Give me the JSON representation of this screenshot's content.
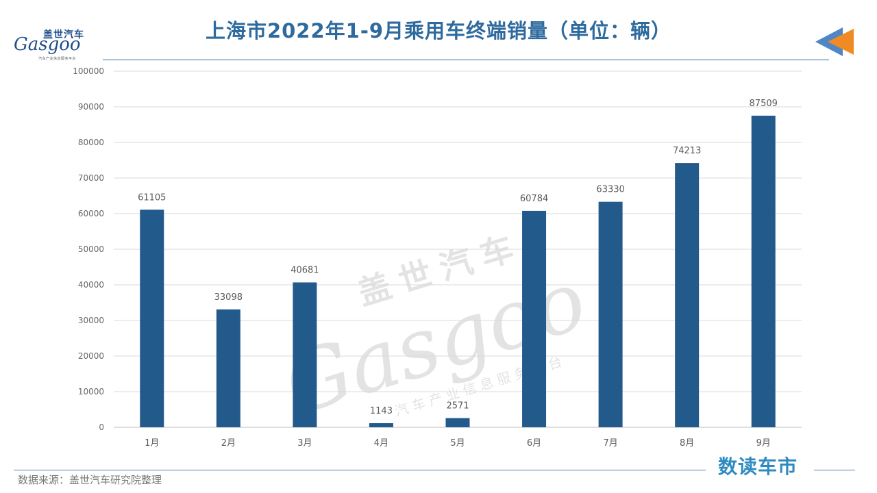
{
  "logo": {
    "cn": "盖世汽车",
    "en": "Gasgoo",
    "sub": "汽车产业信息服务平台"
  },
  "watermark": {
    "cn": "盖世汽车",
    "en": "Gasgoo",
    "sub": "汽车产业信息服务平台"
  },
  "chart_data": {
    "type": "bar",
    "title": "上海市2022年1-9月乘用车终端销量（单位：辆）",
    "categories": [
      "1月",
      "2月",
      "3月",
      "4月",
      "5月",
      "6月",
      "7月",
      "8月",
      "9月"
    ],
    "values": [
      61105,
      33098,
      40681,
      1143,
      2571,
      60784,
      63330,
      74213,
      87509
    ],
    "ylim": [
      0,
      100000
    ],
    "yticks": [
      0,
      10000,
      20000,
      30000,
      40000,
      50000,
      60000,
      70000,
      80000,
      90000,
      100000
    ],
    "grid": true,
    "bar_color": "#235a8c",
    "xlabel": "",
    "ylabel": ""
  },
  "footer": {
    "source": "数据来源：盖世汽车研究院整理",
    "brand": "数读车市"
  }
}
